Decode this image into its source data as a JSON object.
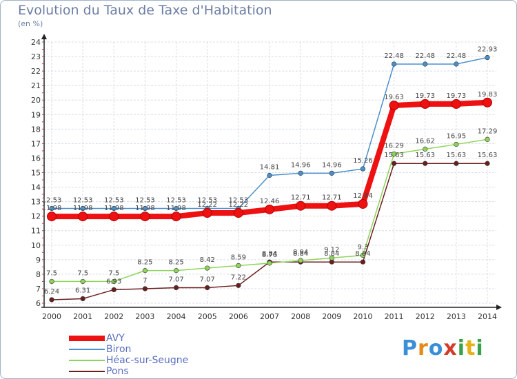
{
  "chart_data": {
    "type": "line",
    "title": "Evolution du Taux de Taxe d'Habitation",
    "unit_label": "(en %)",
    "x": [
      "2000",
      "2001",
      "2002",
      "2003",
      "2004",
      "2005",
      "2006",
      "2007",
      "2008",
      "2009",
      "2010",
      "2011",
      "2012",
      "2013",
      "2014"
    ],
    "ylim": [
      6,
      24
    ],
    "yticks": [
      6,
      7,
      8,
      9,
      10,
      11,
      12,
      13,
      14,
      15,
      16,
      17,
      18,
      19,
      20,
      21,
      22,
      23,
      24
    ],
    "grid": true,
    "legend_placement": "bottom-left",
    "series": [
      {
        "name": "AVY",
        "color": "#ee1111",
        "values": [
          11.98,
          11.98,
          11.98,
          11.98,
          11.98,
          12.22,
          12.22,
          12.46,
          12.71,
          12.71,
          12.84,
          19.63,
          19.73,
          19.73,
          19.83
        ]
      },
      {
        "name": "Biron",
        "color": "#4a90cc",
        "values": [
          12.53,
          12.53,
          12.53,
          12.53,
          12.53,
          12.53,
          12.53,
          14.81,
          14.96,
          14.96,
          15.26,
          22.48,
          22.48,
          22.48,
          22.93
        ]
      },
      {
        "name": "Héac-sur-Seugne",
        "color": "#8fd45a",
        "values": [
          7.5,
          7.5,
          7.5,
          8.25,
          8.25,
          8.42,
          8.59,
          8.76,
          8.94,
          9.12,
          9.3,
          16.29,
          16.62,
          16.95,
          17.29
        ]
      },
      {
        "name": "Pons",
        "color": "#6b1e1e",
        "values": [
          6.24,
          6.31,
          6.93,
          7,
          7.07,
          7.07,
          7.22,
          8.84,
          8.84,
          8.84,
          8.84,
          15.63,
          15.63,
          15.63,
          15.63
        ]
      }
    ]
  },
  "logo": {
    "text": "Proxiti",
    "letters": [
      {
        "ch": "P",
        "color": "#3a8fd8"
      },
      {
        "ch": "r",
        "color": "#e68a1a"
      },
      {
        "ch": "o",
        "color": "#3a8fd8"
      },
      {
        "ch": "x",
        "color": "#d43a2a"
      },
      {
        "ch": "i",
        "color": "#3aa14a"
      },
      {
        "ch": "t",
        "color": "#e6b21a"
      },
      {
        "ch": "i",
        "color": "#3aa14a"
      }
    ]
  }
}
